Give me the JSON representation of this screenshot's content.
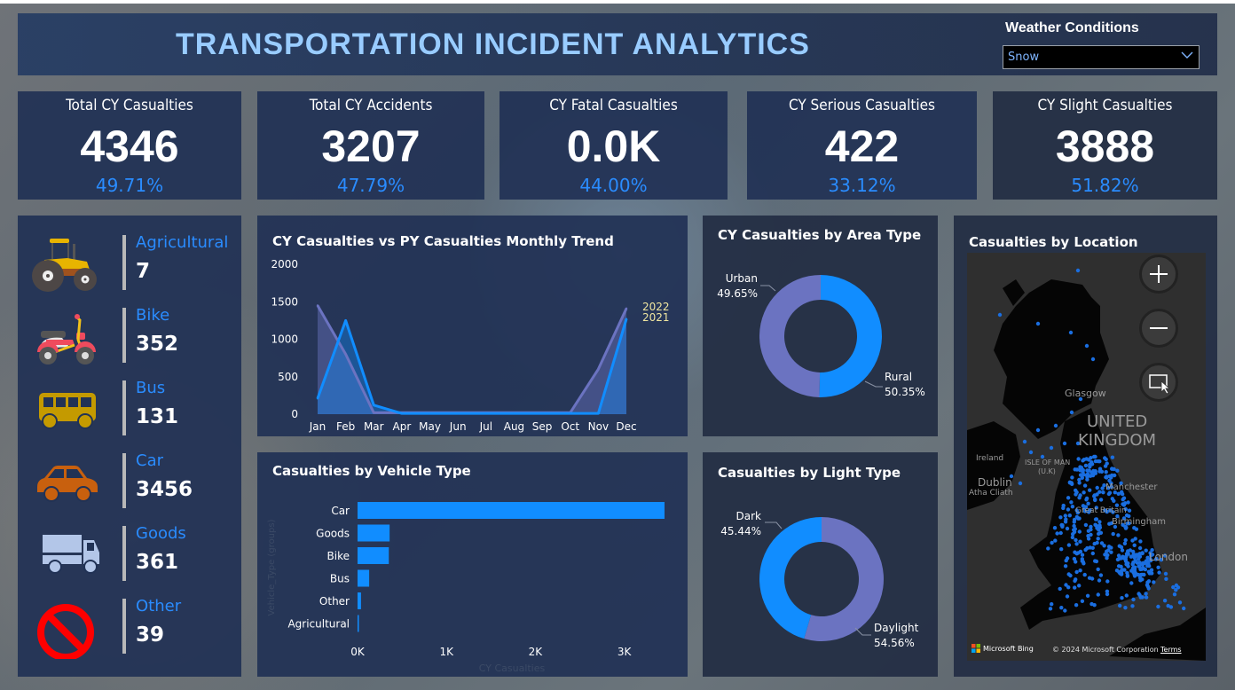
{
  "header": {
    "title": "TRANSPORTATION INCIDENT ANALYTICS",
    "filter_label": "Weather Conditions",
    "filter_value": "Snow"
  },
  "kpis": [
    {
      "title": "Total CY Casualties",
      "value": "4346",
      "pct": "49.71%"
    },
    {
      "title": "Total CY Accidents",
      "value": "3207",
      "pct": "47.79%"
    },
    {
      "title": "CY Fatal Casualties",
      "value": "0.0K",
      "pct": "44.00%"
    },
    {
      "title": "CY Serious Casualties",
      "value": "422",
      "pct": "33.12%"
    },
    {
      "title": "CY Slight Casualties",
      "value": "3888",
      "pct": "51.82%"
    }
  ],
  "vehicles": [
    {
      "label": "Agricultural",
      "value": "7",
      "icon": "tractor-icon"
    },
    {
      "label": "Bike",
      "value": "352",
      "icon": "motorbike-icon"
    },
    {
      "label": "Bus",
      "value": "131",
      "icon": "bus-icon"
    },
    {
      "label": "Car",
      "value": "3456",
      "icon": "car-icon"
    },
    {
      "label": "Goods",
      "value": "361",
      "icon": "truck-icon"
    },
    {
      "label": "Other",
      "value": "39",
      "icon": "prohibited-icon"
    }
  ],
  "colors": {
    "accent_blue": "#118dff",
    "purple": "#6b73c1",
    "title_blue": "#99ccff",
    "pct_blue": "#2a8cff",
    "legend_yellow": "#f0e6a0"
  },
  "chart_data": [
    {
      "type": "area",
      "title": "CY Casualties vs PY Casualties Monthly Trend",
      "categories": [
        "Jan",
        "Feb",
        "Mar",
        "Apr",
        "May",
        "Jun",
        "Jul",
        "Aug",
        "Sep",
        "Oct",
        "Nov",
        "Dec"
      ],
      "yticks": [
        "0",
        "500",
        "1000",
        "1500",
        "2000"
      ],
      "ylim": [
        0,
        2000
      ],
      "series": [
        {
          "name": "2022",
          "values": [
            1450,
            800,
            20,
            20,
            20,
            20,
            20,
            20,
            20,
            20,
            600,
            1410
          ]
        },
        {
          "name": "2021",
          "values": [
            210,
            1250,
            120,
            10,
            10,
            10,
            10,
            10,
            10,
            10,
            10,
            1270
          ]
        }
      ],
      "legend": "right"
    },
    {
      "type": "bar",
      "title": "Casualties by Vehicle Type",
      "categories": [
        "Car",
        "Goods",
        "Bike",
        "Bus",
        "Other",
        "Agricultural"
      ],
      "values": [
        3456,
        361,
        352,
        131,
        39,
        7
      ],
      "xlabel": "CY Casualties",
      "ylabel": "Vehicle_Type (groups)",
      "xticks": [
        "0K",
        "1K",
        "2K",
        "3K"
      ],
      "xlim": [
        0,
        3456
      ]
    },
    {
      "type": "pie",
      "title": "CY Casualties by Area Type",
      "slices": [
        {
          "label": "Rural",
          "value": 50.35,
          "pct_label": "50.35%"
        },
        {
          "label": "Urban",
          "value": 49.65,
          "pct_label": "49.65%"
        }
      ]
    },
    {
      "type": "pie",
      "title": "Casualties by Light Type",
      "slices": [
        {
          "label": "Daylight",
          "value": 54.56,
          "pct_label": "54.56%"
        },
        {
          "label": "Dark",
          "value": 45.44,
          "pct_label": "45.44%"
        }
      ]
    }
  ],
  "map": {
    "title": "Casualties by Location",
    "labels": [
      "Glasgow",
      "UNITED",
      "KINGDOM",
      "Ireland",
      "ISLE OF MAN",
      "(U.K)",
      "Dublin",
      "Atha Cliath",
      "Manchester",
      "Great Britain",
      "Birmingham",
      "London"
    ],
    "attribution": "Microsoft Bing",
    "copyright": "© 2024 Microsoft Corporation",
    "terms": "Terms"
  }
}
